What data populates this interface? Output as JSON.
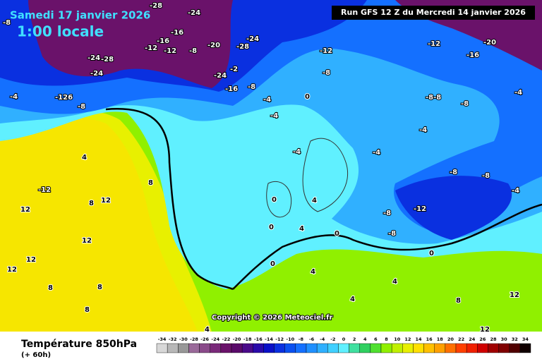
{
  "header": {
    "date": "Samedi 17 janvier 2026",
    "time": "1:00 locale",
    "run": "Run GFS 12 Z du Mercredi 14 janvier 2026"
  },
  "map": {
    "copyright": "Copyright © 2026 Meteociel.fr",
    "labels": [
      "-28",
      "-24",
      "-8",
      "-16",
      "-16",
      "-12",
      "-12",
      "-8",
      "-20",
      "-24",
      "-28",
      "-24",
      "-28",
      "-24",
      "-24",
      "-2",
      "-16",
      "-8",
      "-4",
      "-126",
      "-8",
      "-4",
      "-4",
      "-12",
      "-8",
      "-12",
      "-20",
      "-16",
      "-8-8",
      "-8",
      "-4",
      "-4",
      "-4",
      "-4",
      "0",
      "4",
      "8",
      "-12",
      "12",
      "8",
      "12",
      "4",
      "0",
      "0",
      "4",
      "-8",
      "-12",
      "-8",
      "-8",
      "-8",
      "-4",
      "0",
      "0",
      "0",
      "4",
      "4",
      "4",
      "8",
      "12",
      "12",
      "12",
      "8",
      "8",
      "8",
      "12",
      "12",
      "4"
    ]
  },
  "legend": {
    "title": "Température 850hPa",
    "subtitle": "(+ 60h)",
    "ticks": [
      -34,
      -32,
      -30,
      -28,
      -26,
      -24,
      -22,
      -20,
      -18,
      -16,
      -14,
      -12,
      -10,
      -8,
      -6,
      -4,
      -2,
      0,
      2,
      4,
      6,
      8,
      10,
      12,
      14,
      16,
      18,
      20,
      22,
      24,
      26,
      28,
      30,
      32,
      34
    ],
    "colors": [
      "#d8d8d8",
      "#b8b8b8",
      "#989898",
      "#9a6a9a",
      "#8a4a8a",
      "#7a2a7a",
      "#6a126a",
      "#5a0a6a",
      "#4a0a8a",
      "#2a0aaa",
      "#0a10c8",
      "#0a30e0",
      "#0a50f0",
      "#1470ff",
      "#2090ff",
      "#30b0ff",
      "#40d0ff",
      "#60f0ff",
      "#40e0a0",
      "#30d060",
      "#50e030",
      "#90f000",
      "#c0f000",
      "#e8f000",
      "#ffe000",
      "#ffc000",
      "#ffa000",
      "#ff7000",
      "#ff4000",
      "#f02000",
      "#d00000",
      "#a00000",
      "#800000",
      "#500000",
      "#100000"
    ]
  }
}
